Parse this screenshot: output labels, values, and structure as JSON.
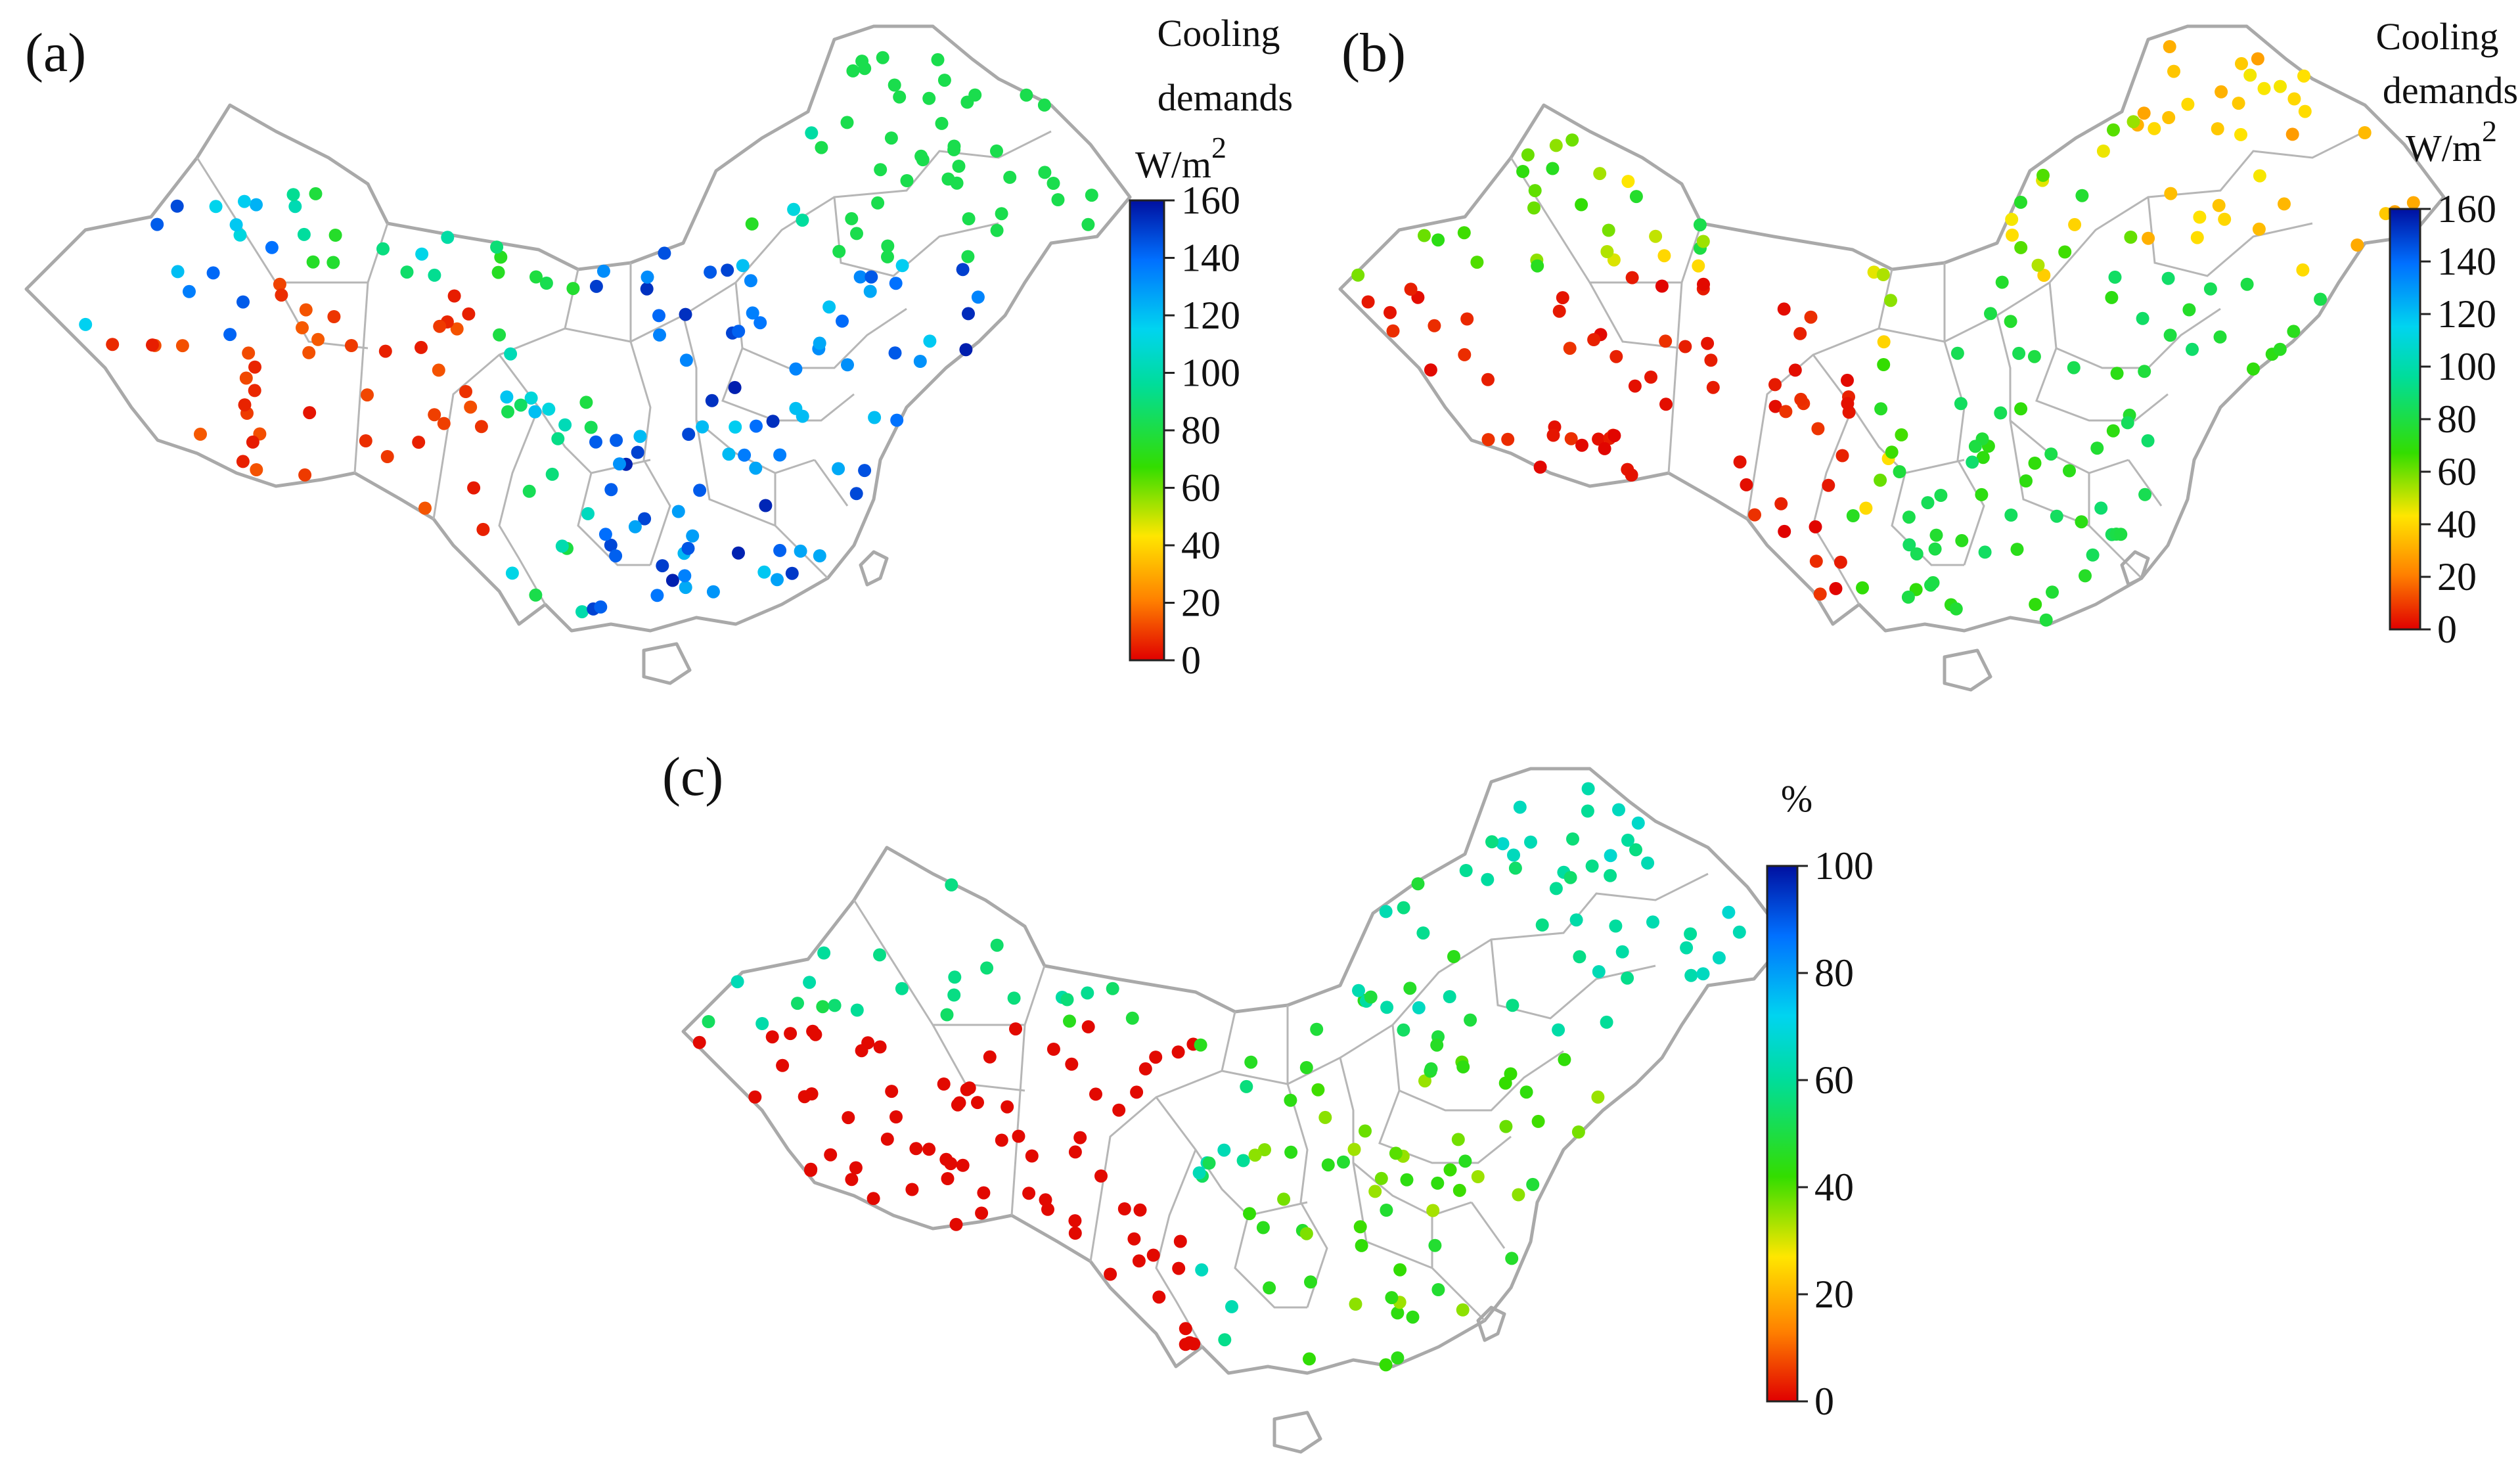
{
  "panels": [
    {
      "id": "a",
      "label": "(a)",
      "colorbar": {
        "title_lines": [
          "Cooling",
          "demands",
          "W/m"
        ],
        "title_sup": "2",
        "ticks": [
          "160",
          "140",
          "120",
          "100",
          "80",
          "60",
          "40",
          "20",
          "0"
        ],
        "range": [
          0,
          160
        ]
      }
    },
    {
      "id": "b",
      "label": "(b)",
      "colorbar": {
        "title_lines": [
          "Cooling",
          "demands",
          "W/m"
        ],
        "title_sup": "2",
        "ticks": [
          "160",
          "140",
          "120",
          "100",
          "80",
          "60",
          "40",
          "20",
          "0"
        ],
        "range": [
          0,
          160
        ]
      }
    },
    {
      "id": "c",
      "label": "(c)",
      "colorbar": {
        "title_lines": [
          "%"
        ],
        "title_sup": "",
        "ticks": [
          "100",
          "80",
          "60",
          "40",
          "20",
          "0"
        ],
        "range": [
          0,
          100
        ]
      }
    }
  ],
  "colors": {
    "scale": [
      "#e00000",
      "#ff8000",
      "#ffe600",
      "#33dd00",
      "#00dd9a",
      "#00d4f0",
      "#0070ff",
      "#0010a0"
    ],
    "outline": "#a9a9a9"
  }
}
